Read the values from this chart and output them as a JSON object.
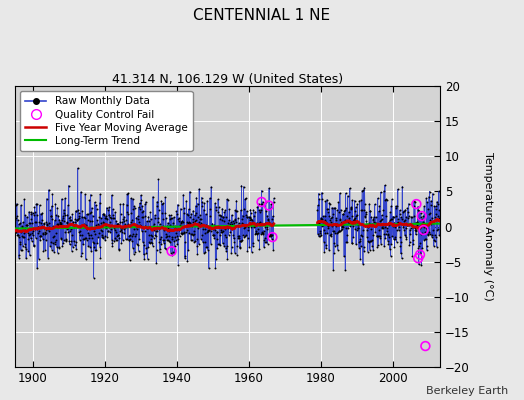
{
  "title": "CENTENNIAL 1 NE",
  "subtitle": "41.314 N, 106.129 W (United States)",
  "ylabel": "Temperature Anomaly (°C)",
  "watermark": "Berkeley Earth",
  "xlim": [
    1895,
    2013
  ],
  "ylim": [
    -20,
    20
  ],
  "yticks": [
    -20,
    -15,
    -10,
    -5,
    0,
    5,
    10,
    15,
    20
  ],
  "xticks": [
    1900,
    1920,
    1940,
    1960,
    1980,
    2000
  ],
  "start_year": 1895,
  "end_year": 2012,
  "fig_bg_color": "#e8e8e8",
  "plot_bg_color": "#d4d4d4",
  "grid_color": "#ffffff",
  "raw_line_color": "#3344cc",
  "raw_dot_color": "#000000",
  "moving_avg_color": "#cc0000",
  "trend_color": "#00bb00",
  "qc_fail_color": "#ff00ff",
  "seed": 42,
  "qc_fail_years": [
    1938.5,
    1963.5,
    1965.5,
    1966.5,
    2006.5,
    2007.0,
    2007.5,
    2008.0,
    2008.5,
    2009.0
  ],
  "qc_fail_values": [
    -3.5,
    3.5,
    3.0,
    -1.5,
    3.2,
    -4.5,
    -4.0,
    1.5,
    -0.5,
    -17.0
  ],
  "gap_start_year": 1967,
  "gap_end_year": 1979,
  "noise_scale": 2.2,
  "trend_slope": 0.004
}
